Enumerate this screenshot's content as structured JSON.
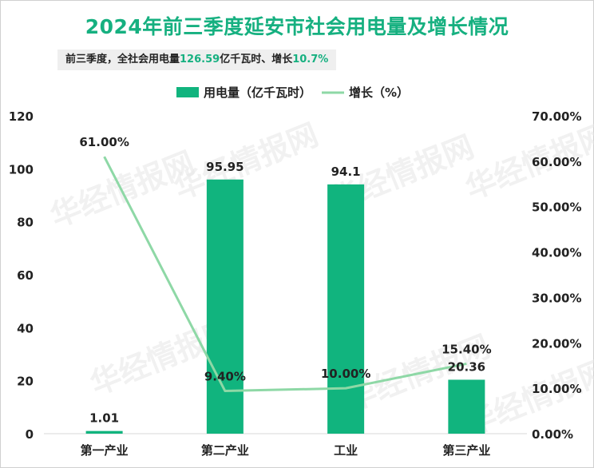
{
  "title": "2024年前三季度延安市社会用电量及增长情况",
  "subtitle": {
    "prefix": "前三季度，全社会用电量",
    "amount": "126.59",
    "mid": "亿千瓦时、增长",
    "growth": "10.7%"
  },
  "colors": {
    "bar": "#11b47e",
    "line": "#8ed8a6",
    "title": "#16b080",
    "watermark": "#e6e6e6"
  },
  "watermark": "华经情报网",
  "chart_data": {
    "type": "bar",
    "categories": [
      "第一产业",
      "第二产业",
      "工业",
      "第三产业"
    ],
    "series": [
      {
        "name": "用电量（亿千瓦时）",
        "type": "bar",
        "axis": "left",
        "values": [
          1.01,
          95.95,
          94.1,
          20.36
        ],
        "labels": [
          "1.01",
          "95.95",
          "94.1",
          "20.36"
        ]
      },
      {
        "name": "增长（%）",
        "type": "line",
        "axis": "right",
        "values": [
          61.0,
          9.4,
          10.0,
          15.4
        ],
        "labels": [
          "61.00%",
          "9.40%",
          "10.00%",
          "15.40%"
        ]
      }
    ],
    "y_left": {
      "min": 0,
      "max": 120,
      "ticks": [
        "0",
        "20",
        "40",
        "60",
        "80",
        "100",
        "120"
      ]
    },
    "y_right": {
      "min": 0,
      "max": 70,
      "ticks": [
        "0.00%",
        "10.00%",
        "20.00%",
        "30.00%",
        "40.00%",
        "50.00%",
        "60.00%",
        "70.00%"
      ]
    },
    "legend_position": "top",
    "grid": false
  }
}
